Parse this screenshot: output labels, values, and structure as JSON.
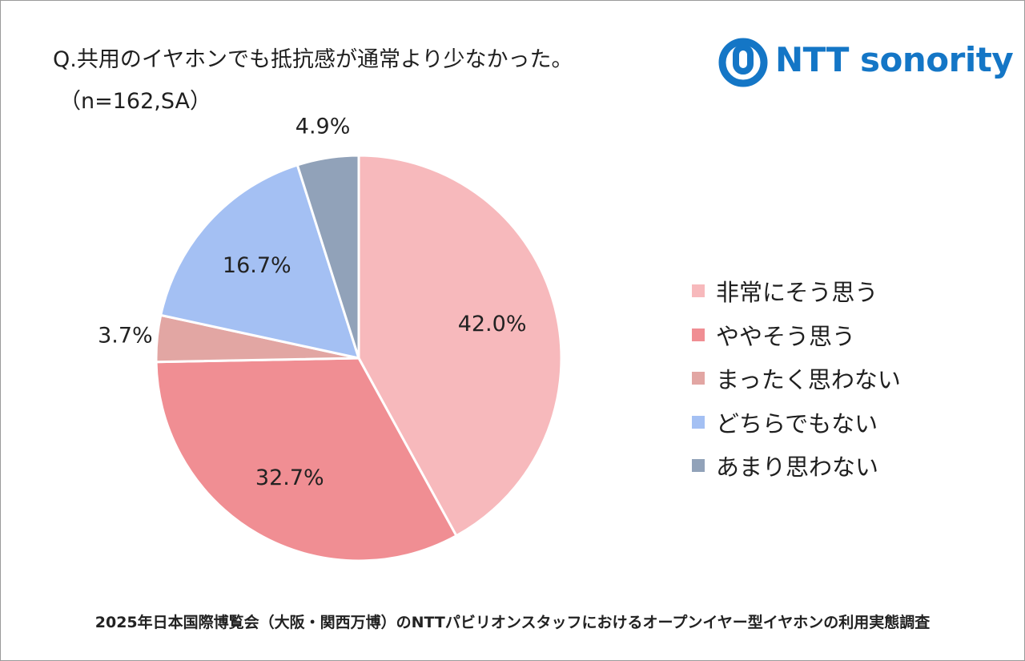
{
  "title": "Q.共用のイヤホンでも抵抗感が通常より少なかった。",
  "subtitle": "（n=162,SA）",
  "logo": {
    "text": "NTT sonority",
    "color": "#1476c6",
    "icon": "ntt-logo-icon"
  },
  "footer": "2025年日本国際博覧会（大阪・関西万博）のNTTパビリオンスタッフにおけるオープンイヤー型イヤホンの利用実態調査",
  "chart_data": {
    "type": "pie",
    "title": "Q.共用のイヤホンでも抵抗感が通常より少なかった。",
    "legend_position": "right",
    "slices": [
      {
        "label": "非常にそう思う",
        "value": 42.0,
        "display": "42.0%",
        "color": "#f7b9bc"
      },
      {
        "label": "ややそう思う",
        "value": 32.7,
        "display": "32.7%",
        "color": "#f08e93"
      },
      {
        "label": "まったく思わない",
        "value": 3.7,
        "display": "3.7%",
        "color": "#e2a6a3"
      },
      {
        "label": "どちらでもない",
        "value": 16.7,
        "display": "16.7%",
        "color": "#a4c0f3"
      },
      {
        "label": "あまり思わない",
        "value": 4.9,
        "display": "4.9%",
        "color": "#91a2b9"
      }
    ]
  }
}
